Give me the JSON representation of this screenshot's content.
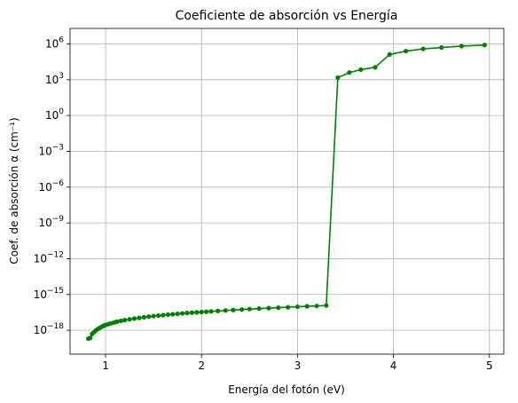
{
  "chart_data": {
    "type": "line",
    "title": "Coeficiente de absorción vs Energía",
    "xlabel": "Energía del fotón (eV)",
    "ylabel": "Coef. de absorción α (cm⁻¹)",
    "xlim": [
      0.63,
      5.15
    ],
    "ylim_log10": [
      -20,
      7.3
    ],
    "yscale": "log",
    "grid": true,
    "xticks": [
      1,
      2,
      3,
      4,
      5
    ],
    "xtick_labels": [
      "1",
      "2",
      "3",
      "4",
      "5"
    ],
    "yticks_log10": [
      6,
      3,
      0,
      -3,
      -6,
      -9,
      -12,
      -15,
      -18
    ],
    "ytick_bases": [
      "10",
      "10",
      "10",
      "10",
      "10",
      "10",
      "10",
      "10",
      "10"
    ],
    "ytick_exponents": [
      "6",
      "3",
      "0",
      "−3",
      "−6",
      "−9",
      "−12",
      "−15",
      "−18"
    ],
    "series": [
      {
        "color": "#008000",
        "marker": "circle",
        "x": [
          0.82,
          0.84,
          0.86,
          0.88,
          0.9,
          0.92,
          0.94,
          0.96,
          0.98,
          1.0,
          1.03,
          1.06,
          1.09,
          1.12,
          1.16,
          1.2,
          1.25,
          1.3,
          1.35,
          1.4,
          1.45,
          1.5,
          1.55,
          1.6,
          1.65,
          1.7,
          1.75,
          1.8,
          1.85,
          1.9,
          1.95,
          2.0,
          2.05,
          2.1,
          2.17,
          2.25,
          2.33,
          2.42,
          2.5,
          2.6,
          2.7,
          2.8,
          2.9,
          3.0,
          3.1,
          3.2,
          3.3,
          3.42,
          3.54,
          3.66,
          3.81,
          3.96,
          4.13,
          4.31,
          4.5,
          4.71,
          4.95
        ],
        "y": [
          2e-19,
          2.3e-19,
          5e-19,
          7e-19,
          1e-18,
          1.3e-18,
          1.6e-18,
          2e-18,
          2.4e-18,
          2.8e-18,
          3.3e-18,
          3.9e-18,
          4.6e-18,
          5.3e-18,
          6.2e-18,
          7.2e-18,
          8.4e-18,
          9.7e-18,
          1.1e-17,
          1.25e-17,
          1.4e-17,
          1.55e-17,
          1.7e-17,
          1.87e-17,
          2.05e-17,
          2.2e-17,
          2.4e-17,
          2.6e-17,
          2.8e-17,
          3e-17,
          3.2e-17,
          3.4e-17,
          3.6e-17,
          3.85e-17,
          4.2e-17,
          4.6e-17,
          5e-17,
          5.5e-17,
          6e-17,
          6.6e-17,
          7.2e-17,
          7.9e-17,
          8.6e-17,
          9.4e-17,
          1.02e-16,
          1.1e-16,
          1.2e-16,
          1500.0,
          4000.0,
          7000.0,
          11000.0,
          130000.0,
          250000.0,
          380000.0,
          500000.0,
          650000.0,
          800000.0
        ]
      }
    ]
  }
}
